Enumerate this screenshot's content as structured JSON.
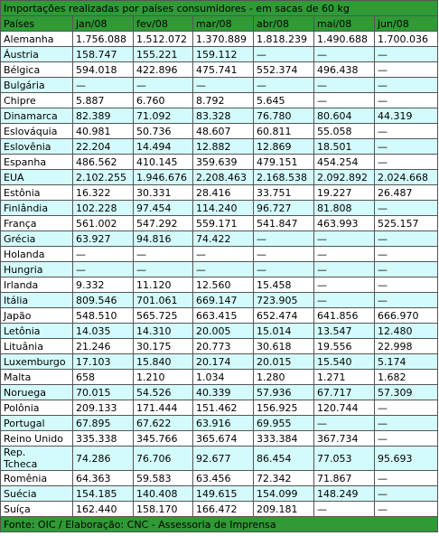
{
  "title": "Importações realizadas por países consumidores - em sacas de 60 kg",
  "table": {
    "header": [
      "Países",
      "jan/08",
      "fev/08",
      "mar/08",
      "abr/08",
      "mai/08",
      "jun/08"
    ],
    "rows": [
      [
        "Alemanha",
        "1.756.088",
        "1.512.072",
        "1.370.889",
        "1.818.239",
        "1.490.688",
        "1.700.036"
      ],
      [
        "Áustria",
        "158.747",
        "155.221",
        "159.112",
        "—",
        "—",
        "—"
      ],
      [
        "Bélgica",
        "594.018",
        "422.896",
        "475.741",
        "552.374",
        "496.438",
        "—"
      ],
      [
        "Bulgária",
        "—",
        "—",
        "—",
        "—",
        "—",
        "—"
      ],
      [
        "Chipre",
        "5.887",
        "6.760",
        "8.792",
        "5.645",
        "—",
        "—"
      ],
      [
        "Dinamarca",
        "82.389",
        "71.092",
        "83.328",
        "76.780",
        "80.604",
        "44.319"
      ],
      [
        "Eslováquia",
        "40.981",
        "50.736",
        "48.607",
        "60.811",
        "55.058",
        "—"
      ],
      [
        "Eslovênia",
        "22.204",
        "14.494",
        "12.882",
        "12.869",
        "18.501",
        "—"
      ],
      [
        "Espanha",
        "486.562",
        "410.145",
        "359.639",
        "479.151",
        "454.254",
        "—"
      ],
      [
        "EUA",
        "2.102.255",
        "1.946.676",
        "2.208.463",
        "2.168.538",
        "2.092.892",
        "2.024.668"
      ],
      [
        "Estônia",
        "16.322",
        "30.331",
        "28.416",
        "33.751",
        "19.227",
        "26.487"
      ],
      [
        "Finlândia",
        "102.228",
        "97.454",
        "114.240",
        "96.727",
        "81.808",
        "—"
      ],
      [
        "França",
        "561.002",
        "547.292",
        "559.171",
        "541.847",
        "463.993",
        "525.157"
      ],
      [
        "Grécia",
        "63.927",
        "94.816",
        "74.422",
        "—",
        "—",
        "—"
      ],
      [
        "Holanda",
        "—",
        "—",
        "—",
        "—",
        "—",
        "—"
      ],
      [
        "Hungria",
        "—",
        "—",
        "—",
        "—",
        "—",
        "—"
      ],
      [
        "Irlanda",
        "9.332",
        "11.120",
        "12.560",
        "15.458",
        "—",
        "—"
      ],
      [
        "Itália",
        "809.546",
        "701.061",
        "669.147",
        "723.905",
        "—",
        "—"
      ],
      [
        "Japão",
        "548.510",
        "565.725",
        "663.415",
        "652.474",
        "641.856",
        "666.970"
      ],
      [
        "Letônia",
        "14.035",
        "14.310",
        "20.005",
        "15.014",
        "13.547",
        "12.480"
      ],
      [
        "Lituânia",
        "21.246",
        "30.175",
        "20.773",
        "30.618",
        "19.556",
        "22.998"
      ],
      [
        "Luxemburgo",
        "17.103",
        "15.840",
        "20.174",
        "20.015",
        "15.540",
        "5.174"
      ],
      [
        "Malta",
        "658",
        "1.210",
        "1.034",
        "1.280",
        "1.271",
        "1.682"
      ],
      [
        "Noruega",
        "70.015",
        "54.526",
        "40.339",
        "57.936",
        "67.717",
        "57.309"
      ],
      [
        "Polônia",
        "209.133",
        "171.444",
        "151.462",
        "156.925",
        "120.744",
        "—"
      ],
      [
        "Portugal",
        "67.895",
        "67.622",
        "63.916",
        "69.955",
        "—",
        "—"
      ],
      [
        "Reino Unido",
        "335.338",
        "345.766",
        "365.674",
        "333.384",
        "367.734",
        "—"
      ],
      [
        "Rep.\nTcheca",
        "74.286",
        "76.706",
        "92.677",
        "86.454",
        "77.053",
        "95.693"
      ],
      [
        "Romênia",
        "64.363",
        "59.583",
        "63.456",
        "72.342",
        "71.867",
        "—"
      ],
      [
        "Suécia",
        "154.185",
        "140.408",
        "149.615",
        "154.099",
        "148.249",
        "—"
      ],
      [
        "Suíça",
        "162.440",
        "158.170",
        "166.472",
        "209.181",
        "—",
        "—"
      ]
    ]
  },
  "footer": "Fonte: OIC / Elaboração: CNC - Assessoria de Imprensa"
}
